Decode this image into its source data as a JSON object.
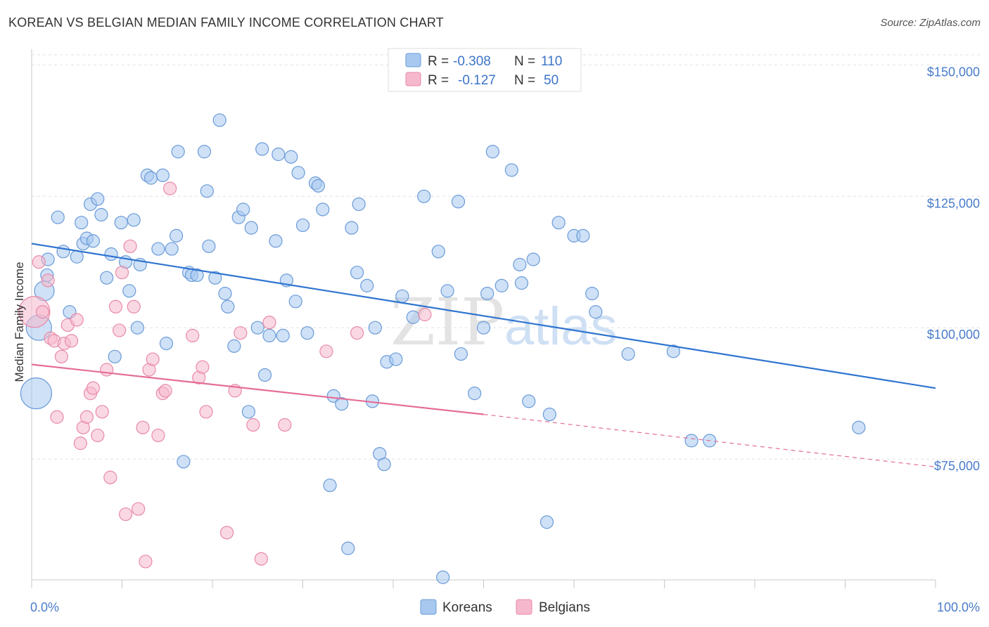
{
  "header": {
    "title": "KOREAN VS BELGIAN MEDIAN FAMILY INCOME CORRELATION CHART",
    "source": "Source: ZipAtlas.com"
  },
  "watermark": {
    "zip": "ZIP",
    "atlas": "atlas"
  },
  "legend": {
    "r_label": "R =",
    "n_label": "N =",
    "rows": [
      {
        "r": "-0.308",
        "n": "110",
        "color": "#a8c8f0"
      },
      {
        "r": "-0.127",
        "n": "50",
        "color": "#f6b8cc"
      }
    ]
  },
  "chart_data": {
    "type": "scatter",
    "title": "KOREAN VS BELGIAN MEDIAN FAMILY INCOME CORRELATION CHART",
    "ylabel": "Median Family Income",
    "xlabel": "",
    "x_tick_labels": [
      "0.0%",
      "100.0%"
    ],
    "y_tick_labels": [
      "$75,000",
      "$100,000",
      "$125,000",
      "$150,000"
    ],
    "y_ticks": [
      75000,
      100000,
      125000,
      150000
    ],
    "xlim": [
      0,
      100
    ],
    "ylim": [
      52000,
      153000
    ],
    "grid": true,
    "legend_position": "top-center",
    "series": [
      {
        "name": "Koreans",
        "color": "#a8c8f0",
        "stroke": "#6a9bd8",
        "line_color": "#2f74d0",
        "trend": {
          "x0": 0,
          "y0": 116000,
          "x1": 100,
          "y1": 88500
        },
        "points": [
          [
            0.5,
            87500,
            22
          ],
          [
            0.8,
            100000,
            18
          ],
          [
            1.4,
            107000,
            14
          ],
          [
            1.7,
            110000,
            9
          ],
          [
            1.8,
            113000,
            9
          ],
          [
            2.9,
            121000,
            9
          ],
          [
            3.5,
            114500,
            9
          ],
          [
            4.2,
            103000,
            9
          ],
          [
            5.0,
            113500,
            9
          ],
          [
            5.5,
            120000,
            9
          ],
          [
            5.7,
            116000,
            9
          ],
          [
            6.1,
            117000,
            9
          ],
          [
            6.5,
            123500,
            9
          ],
          [
            6.8,
            116500,
            9
          ],
          [
            7.3,
            124500,
            9
          ],
          [
            7.7,
            121500,
            9
          ],
          [
            8.3,
            109500,
            9
          ],
          [
            8.8,
            114000,
            9
          ],
          [
            9.2,
            94500,
            9
          ],
          [
            9.9,
            120000,
            9
          ],
          [
            10.4,
            112500,
            9
          ],
          [
            10.8,
            107000,
            9
          ],
          [
            11.3,
            120500,
            9
          ],
          [
            11.7,
            100000,
            9
          ],
          [
            12.0,
            112000,
            9
          ],
          [
            12.8,
            129000,
            9
          ],
          [
            13.2,
            128500,
            9
          ],
          [
            14.0,
            115000,
            9
          ],
          [
            14.5,
            129000,
            9
          ],
          [
            14.9,
            97000,
            9
          ],
          [
            15.5,
            115000,
            9
          ],
          [
            16.0,
            117500,
            9
          ],
          [
            16.2,
            133500,
            9
          ],
          [
            16.8,
            74500,
            9
          ],
          [
            17.4,
            110500,
            9
          ],
          [
            17.7,
            110000,
            9
          ],
          [
            18.3,
            110000,
            9
          ],
          [
            19.1,
            133500,
            9
          ],
          [
            19.4,
            126000,
            9
          ],
          [
            19.6,
            115500,
            9
          ],
          [
            20.3,
            109500,
            9
          ],
          [
            20.8,
            139500,
            9
          ],
          [
            21.4,
            106500,
            9
          ],
          [
            21.7,
            104000,
            9
          ],
          [
            22.4,
            96500,
            9
          ],
          [
            22.9,
            121000,
            9
          ],
          [
            23.4,
            122500,
            9
          ],
          [
            24.0,
            84000,
            9
          ],
          [
            24.3,
            119000,
            9
          ],
          [
            25.0,
            100000,
            9
          ],
          [
            25.5,
            134000,
            9
          ],
          [
            25.8,
            91000,
            9
          ],
          [
            26.3,
            98500,
            9
          ],
          [
            27.0,
            116500,
            9
          ],
          [
            27.3,
            133000,
            9
          ],
          [
            27.8,
            98500,
            9
          ],
          [
            28.2,
            109000,
            9
          ],
          [
            28.7,
            132500,
            9
          ],
          [
            29.2,
            105000,
            9
          ],
          [
            29.5,
            129500,
            9
          ],
          [
            30.0,
            119500,
            9
          ],
          [
            30.5,
            99000,
            9
          ],
          [
            31.4,
            127500,
            9
          ],
          [
            31.7,
            127000,
            9
          ],
          [
            32.2,
            122500,
            9
          ],
          [
            33.0,
            70000,
            9
          ],
          [
            33.4,
            87000,
            9
          ],
          [
            34.3,
            85500,
            9
          ],
          [
            35.0,
            58000,
            9
          ],
          [
            35.4,
            119000,
            9
          ],
          [
            36.0,
            110500,
            9
          ],
          [
            36.2,
            123500,
            9
          ],
          [
            37.1,
            108000,
            9
          ],
          [
            37.7,
            86000,
            9
          ],
          [
            38.0,
            100000,
            9
          ],
          [
            38.5,
            76000,
            9
          ],
          [
            39.0,
            74000,
            9
          ],
          [
            39.3,
            93500,
            9
          ],
          [
            40.3,
            94000,
            9
          ],
          [
            41.0,
            106000,
            9
          ],
          [
            42.2,
            102000,
            9
          ],
          [
            43.4,
            125000,
            9
          ],
          [
            45.0,
            114500,
            9
          ],
          [
            45.5,
            52500,
            9
          ],
          [
            46.0,
            107000,
            9
          ],
          [
            47.2,
            124000,
            9
          ],
          [
            47.5,
            95000,
            9
          ],
          [
            49.0,
            87500,
            9
          ],
          [
            50.0,
            100000,
            9
          ],
          [
            50.4,
            106500,
            9
          ],
          [
            51.0,
            133500,
            9
          ],
          [
            51.5,
            147000,
            9
          ],
          [
            52.0,
            108000,
            9
          ],
          [
            53.1,
            130000,
            9
          ],
          [
            54.0,
            112000,
            9
          ],
          [
            54.2,
            108500,
            9
          ],
          [
            55.0,
            86000,
            9
          ],
          [
            55.5,
            113000,
            9
          ],
          [
            57.0,
            63000,
            9
          ],
          [
            57.3,
            83500,
            9
          ],
          [
            58.3,
            120000,
            9
          ],
          [
            60.0,
            117500,
            9
          ],
          [
            61.0,
            117500,
            9
          ],
          [
            62.0,
            106500,
            9
          ],
          [
            62.4,
            103000,
            9
          ],
          [
            66.0,
            95000,
            9
          ],
          [
            71.0,
            95500,
            9
          ],
          [
            73.0,
            78500,
            9
          ],
          [
            75.0,
            78500,
            9
          ],
          [
            91.5,
            81000,
            9
          ]
        ]
      },
      {
        "name": "Belgians",
        "color": "#f6b8cc",
        "stroke": "#e88aa8",
        "line_color": "#e56d96",
        "trend": {
          "x0": 0,
          "y0": 93000,
          "x1": 50,
          "y1": 83500,
          "dash_x1": 100,
          "dash_y1": 73500
        },
        "points": [
          [
            0.3,
            103000,
            22
          ],
          [
            0.8,
            112500,
            9
          ],
          [
            1.2,
            103000,
            9
          ],
          [
            1.8,
            109000,
            9
          ],
          [
            2.1,
            98000,
            9
          ],
          [
            2.5,
            97500,
            9
          ],
          [
            2.8,
            83000,
            9
          ],
          [
            3.3,
            94500,
            9
          ],
          [
            3.6,
            97000,
            9
          ],
          [
            4.0,
            100500,
            9
          ],
          [
            4.4,
            97500,
            9
          ],
          [
            5.0,
            101500,
            9
          ],
          [
            5.4,
            78000,
            9
          ],
          [
            5.7,
            81000,
            9
          ],
          [
            6.1,
            83000,
            9
          ],
          [
            6.5,
            87500,
            9
          ],
          [
            6.8,
            88500,
            9
          ],
          [
            7.3,
            79500,
            9
          ],
          [
            7.8,
            84000,
            9
          ],
          [
            8.3,
            92000,
            9
          ],
          [
            8.7,
            71500,
            9
          ],
          [
            9.3,
            104000,
            9
          ],
          [
            9.7,
            99500,
            9
          ],
          [
            10.0,
            110500,
            9
          ],
          [
            10.4,
            64500,
            9
          ],
          [
            10.9,
            115500,
            9
          ],
          [
            11.3,
            104000,
            9
          ],
          [
            11.8,
            65500,
            9
          ],
          [
            12.3,
            81000,
            9
          ],
          [
            12.6,
            55500,
            9
          ],
          [
            13.0,
            92000,
            9
          ],
          [
            13.4,
            94000,
            9
          ],
          [
            14.0,
            79500,
            9
          ],
          [
            14.5,
            87500,
            9
          ],
          [
            14.8,
            88000,
            9
          ],
          [
            15.3,
            126500,
            9
          ],
          [
            17.8,
            98500,
            9
          ],
          [
            18.5,
            90500,
            9
          ],
          [
            18.9,
            92500,
            9
          ],
          [
            19.3,
            84000,
            9
          ],
          [
            21.6,
            61000,
            9
          ],
          [
            22.5,
            88000,
            9
          ],
          [
            23.1,
            99000,
            9
          ],
          [
            24.5,
            81500,
            9
          ],
          [
            25.4,
            56000,
            9
          ],
          [
            26.3,
            101000,
            9
          ],
          [
            28.0,
            81500,
            9
          ],
          [
            32.6,
            95500,
            9
          ],
          [
            36.0,
            99000,
            9
          ],
          [
            43.5,
            102500,
            9
          ]
        ]
      }
    ]
  },
  "bottom_legend": [
    {
      "label": "Koreans",
      "color": "#a8c8f0",
      "stroke": "#6a9bd8"
    },
    {
      "label": "Belgians",
      "color": "#f6b8cc",
      "stroke": "#e88aa8"
    }
  ]
}
